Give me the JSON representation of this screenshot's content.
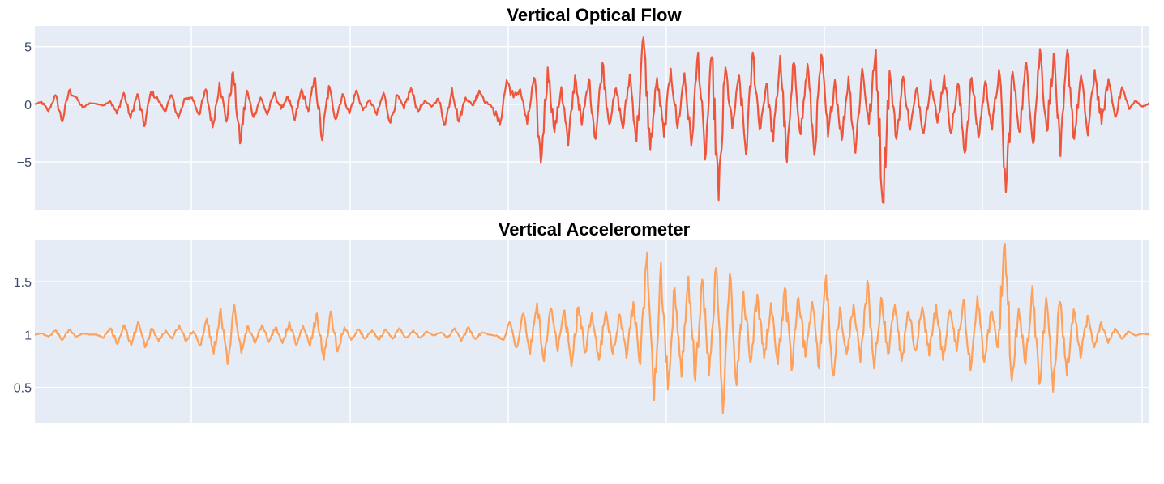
{
  "chart_data": [
    {
      "type": "line",
      "title": "Vertical Optical Flow",
      "xlabel": "",
      "ylabel": "",
      "ylim": [
        -9.2,
        6.8
      ],
      "yticks": [
        5,
        0,
        -5
      ],
      "ytick_labels": [
        "5",
        "0",
        "−5"
      ],
      "grid": true,
      "legend": "none",
      "color": "#ef553b",
      "baseline": 0,
      "series": [
        {
          "values": [
            0.0,
            0.2,
            -0.6,
            0.8,
            -1.5,
            1.2,
            0.6,
            -0.3,
            0.1,
            0.05,
            -0.1,
            0.3,
            -0.8,
            1.0,
            -1.2,
            0.9,
            -1.9,
            1.1,
            0.4,
            -0.6,
            0.8,
            -1.2,
            0.5,
            0.6,
            -0.9,
            1.3,
            -2.0,
            1.9,
            -1.5,
            2.8,
            -3.4,
            1.2,
            -1.1,
            0.6,
            -0.9,
            1.0,
            -0.4,
            0.7,
            -1.4,
            1.3,
            -0.6,
            2.3,
            -3.1,
            1.6,
            -1.3,
            0.9,
            -0.8,
            1.2,
            -0.5,
            0.4,
            -0.9,
            1.0,
            -1.6,
            0.8,
            -0.4,
            1.4,
            -0.6,
            0.3,
            -0.2,
            0.5,
            -1.8,
            1.4,
            -1.5,
            0.6,
            -0.1,
            1.2,
            0.2,
            -0.3,
            -1.8,
            2.1,
            0.6,
            1.3,
            -1.7,
            2.3,
            -5.1,
            3.2,
            -2.4,
            1.5,
            -3.6,
            2.5,
            -1.8,
            2.2,
            -3.0,
            3.6,
            -1.7,
            1.4,
            -2.1,
            2.6,
            -3.2,
            5.8,
            -3.9,
            2.3,
            -2.8,
            3.1,
            -2.1,
            2.7,
            -3.6,
            4.5,
            -4.8,
            4.1,
            -8.3,
            3.2,
            -2.1,
            2.5,
            -4.3,
            4.5,
            -2.2,
            1.8,
            -3.2,
            4.2,
            -5.0,
            3.6,
            -2.6,
            3.5,
            -4.4,
            4.3,
            -2.8,
            2.1,
            -3.1,
            2.4,
            -4.2,
            3.1,
            -1.7,
            4.7,
            -8.5,
            2.9,
            -3.0,
            2.4,
            -2.2,
            1.4,
            -2.5,
            2.1,
            -1.6,
            2.5,
            -2.5,
            1.8,
            -4.2,
            2.3,
            -2.9,
            2.0,
            -2.2,
            3.0,
            -7.6,
            2.8,
            -2.4,
            3.6,
            -3.4,
            4.8,
            -2.3,
            4.4,
            -4.5,
            4.7,
            -3.0,
            2.5,
            -2.7,
            3.0,
            -1.7,
            2.2,
            -1.1,
            1.5,
            -0.4,
            0.3,
            -0.2,
            0.1
          ]
        }
      ]
    },
    {
      "type": "line",
      "title": "Vertical Accelerometer",
      "xlabel": "",
      "ylabel": "",
      "ylim": [
        0.16,
        1.9
      ],
      "yticks": [
        1.5,
        1,
        0.5
      ],
      "ytick_labels": [
        "1.5",
        "1",
        "0.5"
      ],
      "grid": true,
      "legend": "none",
      "color": "#ffa15a",
      "baseline": 1,
      "series": [
        {
          "values": [
            1.0,
            1.01,
            0.98,
            1.04,
            0.95,
            1.05,
            0.98,
            1.01,
            1.0,
            1.0,
            0.97,
            1.06,
            0.91,
            1.09,
            0.9,
            1.12,
            0.88,
            1.06,
            0.94,
            1.04,
            0.96,
            1.09,
            0.94,
            1.03,
            0.9,
            1.15,
            0.82,
            1.25,
            0.72,
            1.28,
            0.83,
            1.08,
            0.92,
            1.09,
            0.93,
            1.07,
            0.92,
            1.12,
            0.9,
            1.08,
            0.89,
            1.2,
            0.76,
            1.22,
            0.84,
            1.07,
            0.95,
            1.05,
            0.96,
            1.04,
            0.95,
            1.05,
            0.96,
            1.06,
            0.97,
            1.04,
            0.97,
            1.03,
            0.99,
            1.02,
            0.97,
            1.06,
            0.94,
            1.07,
            0.96,
            1.02,
            1.0,
            0.99,
            0.95,
            1.12,
            0.88,
            1.2,
            0.82,
            1.3,
            0.75,
            1.25,
            0.84,
            1.23,
            0.7,
            1.26,
            0.83,
            1.21,
            0.76,
            1.22,
            0.82,
            1.19,
            0.78,
            1.31,
            0.72,
            1.78,
            0.38,
            1.68,
            0.48,
            1.44,
            0.6,
            1.55,
            0.56,
            1.52,
            0.62,
            1.63,
            0.26,
            1.58,
            0.52,
            1.41,
            0.74,
            1.38,
            0.78,
            1.3,
            0.72,
            1.44,
            0.66,
            1.35,
            0.79,
            1.31,
            0.68,
            1.56,
            0.61,
            1.26,
            0.82,
            1.29,
            0.74,
            1.51,
            0.68,
            1.35,
            0.82,
            1.28,
            0.75,
            1.22,
            0.85,
            1.26,
            0.8,
            1.28,
            0.76,
            1.23,
            0.84,
            1.33,
            0.66,
            1.36,
            0.74,
            1.22,
            0.88,
            1.86,
            0.56,
            1.25,
            0.72,
            1.46,
            0.53,
            1.35,
            0.46,
            1.31,
            0.62,
            1.24,
            0.78,
            1.18,
            0.88,
            1.12,
            0.92,
            1.06,
            0.96,
            1.03,
            0.99,
            1.01,
            1.0
          ]
        }
      ]
    }
  ]
}
